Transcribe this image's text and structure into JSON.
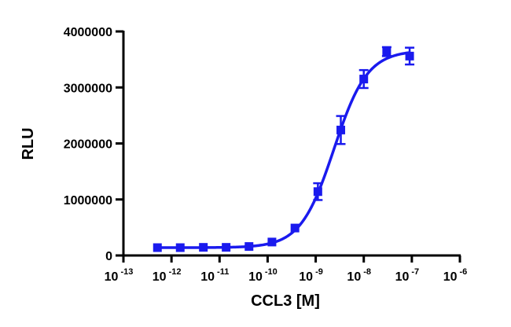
{
  "chart_data": {
    "type": "scatter",
    "xlabel": "CCL3 [M]",
    "ylabel": "RLU",
    "x_scale": "log10",
    "xlim": [
      1e-13,
      1e-06
    ],
    "ylim": [
      0,
      4000000
    ],
    "y_ticks": [
      0,
      1000000,
      2000000,
      3000000,
      4000000
    ],
    "y_tick_labels": [
      "0",
      "1000000",
      "2000000",
      "3000000",
      "4000000"
    ],
    "x_ticks": [
      1e-13,
      1e-12,
      1e-11,
      1e-10,
      1e-09,
      1e-08,
      1e-07,
      1e-06
    ],
    "x_tick_labels": [
      {
        "base": "10",
        "exp": "-13"
      },
      {
        "base": "10",
        "exp": "-12"
      },
      {
        "base": "10",
        "exp": "-11"
      },
      {
        "base": "10",
        "exp": "-10"
      },
      {
        "base": "10",
        "exp": "-9"
      },
      {
        "base": "10",
        "exp": "-8"
      },
      {
        "base": "10",
        "exp": "-7"
      },
      {
        "base": "10",
        "exp": "-6"
      }
    ],
    "grid": false,
    "color": "#1a1aee",
    "series": [
      {
        "marker": "square",
        "points": [
          {
            "x": 5.1e-13,
            "y": 140000,
            "err": 0
          },
          {
            "x": 1.52e-12,
            "y": 140000,
            "err": 0
          },
          {
            "x": 4.6e-12,
            "y": 145000,
            "err": 0
          },
          {
            "x": 1.37e-11,
            "y": 145000,
            "err": 0
          },
          {
            "x": 4.1e-11,
            "y": 160000,
            "err": 0
          },
          {
            "x": 1.23e-10,
            "y": 240000,
            "err": 0
          },
          {
            "x": 3.7e-10,
            "y": 490000,
            "err": 0
          },
          {
            "x": 1.11e-09,
            "y": 1140000,
            "err": 150000
          },
          {
            "x": 3.33e-09,
            "y": 2240000,
            "err": 250000
          },
          {
            "x": 1e-08,
            "y": 3150000,
            "err": 160000
          },
          {
            "x": 3e-08,
            "y": 3640000,
            "err": 80000
          },
          {
            "x": 9e-08,
            "y": 3560000,
            "err": 150000
          }
        ],
        "fit": {
          "model": "four-parameter logistic",
          "bottom": 140000,
          "top": 3660000,
          "logEC50": -8.62,
          "hill": 1.25
        }
      }
    ]
  }
}
